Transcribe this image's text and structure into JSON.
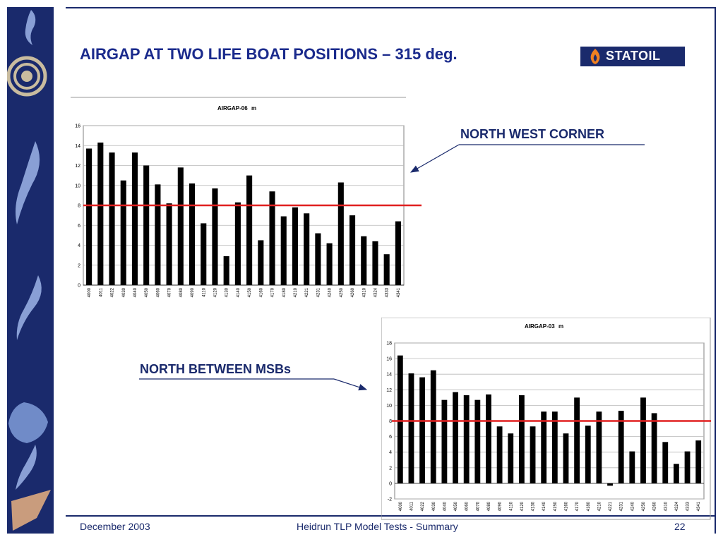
{
  "slide": {
    "title": "AIRGAP AT TWO LIFE BOAT POSITIONS – 315 deg.",
    "logo_text": "STATOIL",
    "callouts": {
      "north_west": "NORTH WEST CORNER",
      "north_between": "NORTH BETWEEN MSBs"
    },
    "footer": {
      "date": "December 2003",
      "center": "Heidrun TLP Model Tests - Summary",
      "page": "22"
    },
    "colors": {
      "navy": "#1a2a6c",
      "title": "#1a2a8c",
      "threshold": "#e02020",
      "bar": "#000000"
    },
    "threshold_value": 8
  },
  "chart_data": [
    {
      "type": "bar",
      "title": "AIRGAP-06",
      "unit": "m",
      "categories": [
        "4000",
        "4011",
        "4022",
        "4030",
        "4040",
        "4050",
        "4060",
        "4070",
        "4080",
        "4090",
        "4110",
        "4120",
        "4130",
        "4140",
        "4150",
        "4160",
        "4170",
        "4180",
        "4210",
        "4221",
        "4231",
        "4240",
        "4250",
        "4260",
        "4310",
        "4324",
        "4333",
        "4341"
      ],
      "values": [
        13.7,
        14.3,
        13.3,
        10.5,
        13.3,
        12.0,
        10.1,
        8.2,
        11.8,
        10.2,
        6.2,
        9.7,
        2.9,
        8.3,
        11.0,
        4.5,
        9.4,
        6.9,
        7.8,
        7.2,
        5.2,
        4.2,
        10.3,
        7.0,
        4.9,
        4.4,
        3.1,
        6.4
      ],
      "ylim": [
        0,
        16
      ],
      "yticks": [
        0,
        2,
        4,
        6,
        8,
        10,
        12,
        14,
        16
      ],
      "grid": true
    },
    {
      "type": "bar",
      "title": "AIRGAP-03",
      "unit": "m",
      "categories": [
        "4000",
        "4011",
        "4022",
        "4030",
        "4040",
        "4050",
        "4060",
        "4070",
        "4080",
        "4090",
        "4110",
        "4120",
        "4130",
        "4140",
        "4150",
        "4160",
        "4170",
        "4180",
        "4210",
        "4221",
        "4231",
        "4240",
        "4250",
        "4260",
        "4310",
        "4324",
        "4333",
        "4341"
      ],
      "values": [
        16.4,
        14.1,
        13.6,
        14.5,
        10.7,
        11.7,
        11.3,
        10.7,
        11.4,
        7.3,
        6.4,
        11.3,
        7.3,
        9.2,
        9.2,
        6.4,
        11.0,
        7.4,
        9.2,
        -0.3,
        9.3,
        4.1,
        11.0,
        9.0,
        5.3,
        2.5,
        4.1,
        5.5
      ],
      "ylim": [
        -2,
        18
      ],
      "yticks": [
        -2,
        0,
        2,
        4,
        6,
        8,
        10,
        12,
        14,
        16,
        18
      ],
      "grid": true
    }
  ]
}
